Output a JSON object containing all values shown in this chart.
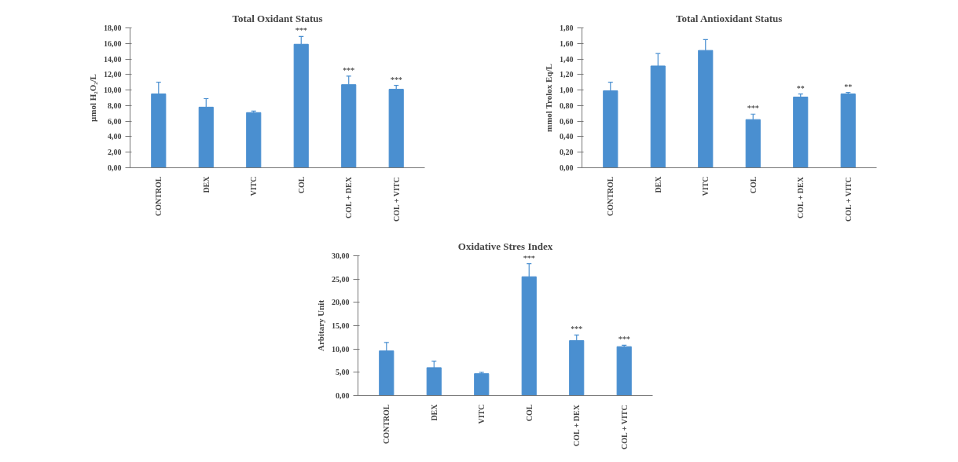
{
  "chart_data": [
    {
      "type": "bar",
      "title": "Total Oxidant Status",
      "ylabel": "μmol H₂O₂/L",
      "categories": [
        "CONTROL",
        "DEX",
        "VITC",
        "COL",
        "COL + DEX",
        "COL + VITC"
      ],
      "values": [
        9.5,
        7.8,
        7.1,
        15.9,
        10.7,
        10.1
      ],
      "errors": [
        [
          9.5,
          11.0
        ],
        [
          7.8,
          8.9
        ],
        [
          7.1,
          7.3
        ],
        [
          15.9,
          16.9
        ],
        [
          10.7,
          11.8
        ],
        [
          10.1,
          10.6
        ]
      ],
      "color": "#4a8fd0",
      "ylim": [
        0,
        18
      ],
      "yticks": [
        {
          "value": 0,
          "label": "0,00"
        },
        {
          "value": 2,
          "label": "2,00"
        },
        {
          "value": 4,
          "label": "4,00"
        },
        {
          "value": 6,
          "label": "6,00"
        },
        {
          "value": 8,
          "label": "8,00"
        },
        {
          "value": 10,
          "label": "10,00"
        },
        {
          "value": 12,
          "label": "12,00"
        },
        {
          "value": 14,
          "label": "14,00"
        },
        {
          "value": 16,
          "label": "16,00"
        },
        {
          "value": 18,
          "label": "18,00"
        }
      ],
      "grid": false,
      "annotations": [
        {
          "text": "***",
          "x": "COL",
          "y": 16.9
        },
        {
          "text": "***",
          "x": "COL + DEX",
          "y": 11.8
        },
        {
          "text": "***",
          "x": "COL + VITC",
          "y": 10.6
        }
      ]
    },
    {
      "type": "bar",
      "title": "Total Antioxidant Status",
      "ylabel": "mmol Trolox Eq/L",
      "categories": [
        "CONTROL",
        "DEX",
        "VITC",
        "COL",
        "COL + DEX",
        "COL + VITC"
      ],
      "values": [
        0.99,
        1.31,
        1.51,
        0.62,
        0.91,
        0.95
      ],
      "errors": [
        [
          0.99,
          1.1
        ],
        [
          1.31,
          1.47
        ],
        [
          1.51,
          1.65
        ],
        [
          0.62,
          0.69
        ],
        [
          0.91,
          0.95
        ],
        [
          0.95,
          0.97
        ]
      ],
      "color": "#4a8fd0",
      "ylim": [
        0,
        1.8
      ],
      "yticks": [
        {
          "value": 0,
          "label": "0,00"
        },
        {
          "value": 0.2,
          "label": "0,20"
        },
        {
          "value": 0.4,
          "label": "0,40"
        },
        {
          "value": 0.6,
          "label": "0,60"
        },
        {
          "value": 0.8,
          "label": "0,80"
        },
        {
          "value": 1.0,
          "label": "1,00"
        },
        {
          "value": 1.2,
          "label": "1,20"
        },
        {
          "value": 1.4,
          "label": "1,40"
        },
        {
          "value": 1.6,
          "label": "1,60"
        },
        {
          "value": 1.8,
          "label": "1,80"
        }
      ],
      "grid": false,
      "annotations": [
        {
          "text": "***",
          "x": "COL",
          "y": 0.69
        },
        {
          "text": "**",
          "x": "COL + DEX",
          "y": 0.95
        },
        {
          "text": "**",
          "x": "COL + VITC",
          "y": 0.97
        }
      ]
    },
    {
      "type": "bar",
      "title": "Oxidative Stres Index",
      "ylabel": "Arbitary Unit",
      "categories": [
        "CONTROL",
        "DEX",
        "VITC",
        "COL",
        "COL + DEX",
        "COL + VITC"
      ],
      "values": [
        9.6,
        6.0,
        4.7,
        25.5,
        11.8,
        10.5
      ],
      "errors": [
        [
          9.6,
          11.4
        ],
        [
          6.0,
          7.4
        ],
        [
          4.7,
          5.0
        ],
        [
          25.5,
          28.3
        ],
        [
          11.8,
          13.0
        ],
        [
          10.5,
          10.8
        ]
      ],
      "color": "#4a8fd0",
      "ylim": [
        0,
        30
      ],
      "yticks": [
        {
          "value": 0,
          "label": "0,00"
        },
        {
          "value": 5,
          "label": "5,00"
        },
        {
          "value": 10,
          "label": "10,00"
        },
        {
          "value": 15,
          "label": "15,00"
        },
        {
          "value": 20,
          "label": "20,00"
        },
        {
          "value": 25,
          "label": "25,00"
        },
        {
          "value": 30,
          "label": "30,00"
        }
      ],
      "grid": false,
      "annotations": [
        {
          "text": "***",
          "x": "COL",
          "y": 28.3
        },
        {
          "text": "***",
          "x": "COL + DEX",
          "y": 13.0
        },
        {
          "text": "***",
          "x": "COL + VITC",
          "y": 10.8
        }
      ]
    }
  ]
}
